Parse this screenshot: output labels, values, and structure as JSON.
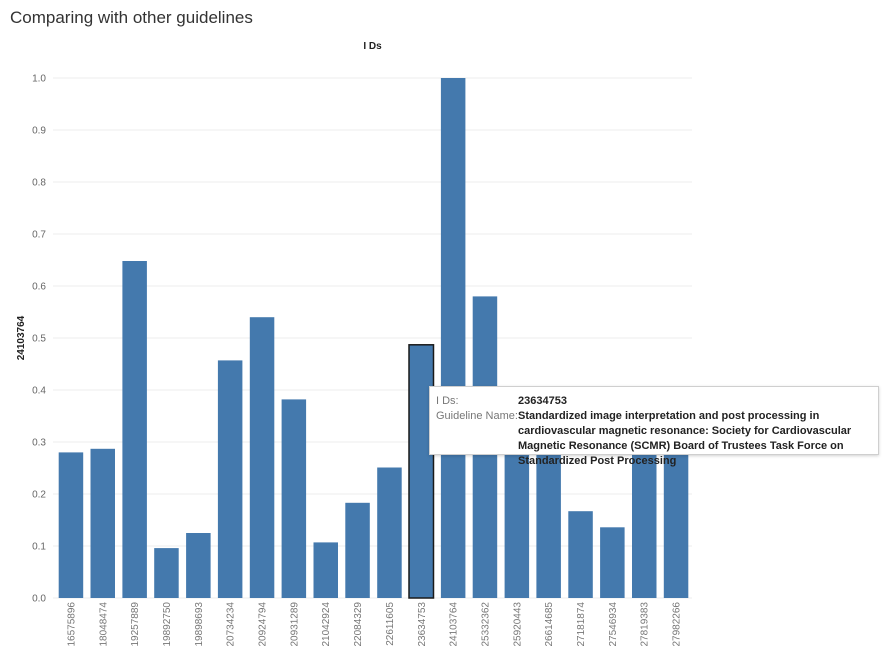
{
  "page": {
    "title": "Comparing with other guidelines"
  },
  "chart_data": {
    "type": "bar",
    "title": "I Ds",
    "xlabel": "",
    "ylabel": "24103764",
    "ylim": [
      0,
      1.0
    ],
    "yticks": [
      "0.0",
      "0.1",
      "0.2",
      "0.3",
      "0.4",
      "0.5",
      "0.6",
      "0.7",
      "0.8",
      "0.9",
      "1.0"
    ],
    "grid": true,
    "bar_color": "#4479ad",
    "highlight_outline": "#1a1a1a",
    "highlighted_category": "23634753",
    "categories": [
      "16575896",
      "18048474",
      "19257889",
      "19892750",
      "19898693",
      "20734234",
      "20924794",
      "20931289",
      "21042924",
      "22084329",
      "22611605",
      "23634753",
      "24103764",
      "25332362",
      "25920443",
      "26614685",
      "27181874",
      "27546934",
      "27819383",
      "27982266"
    ],
    "values": [
      0.28,
      0.287,
      0.648,
      0.096,
      0.125,
      0.457,
      0.54,
      0.382,
      0.107,
      0.183,
      0.251,
      0.487,
      1.0,
      0.58,
      0.32,
      0.3,
      0.167,
      0.136,
      0.3,
      0.3
    ]
  },
  "tooltip": {
    "rows": [
      {
        "key": "I Ds:",
        "value": "23634753"
      },
      {
        "key": "Guideline Name:",
        "value": "Standardized image interpretation and post processing in cardiovascular magnetic resonance: Society for Cardiovascular Magnetic Resonance (SCMR) Board of Trustees Task Force on Standardized Post Processing"
      }
    ]
  }
}
